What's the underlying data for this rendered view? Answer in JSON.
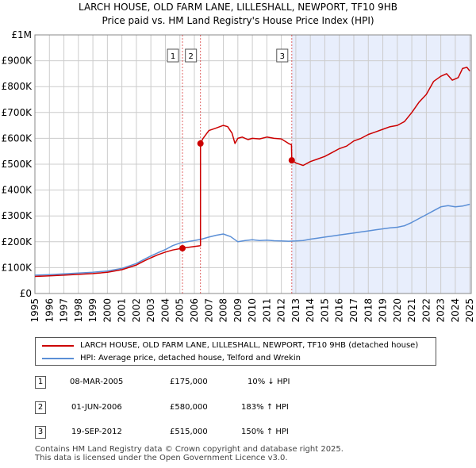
{
  "colors": {
    "property": "#cc0000",
    "hpi": "#5b8fd6",
    "shade": "#e8eefc",
    "grid": "#cccccc",
    "marker_line": "#cc0000"
  },
  "chart_data": {
    "type": "line",
    "title": "LARCH HOUSE, OLD FARM LANE, LILLESHALL, NEWPORT, TF10 9HB",
    "subtitle": "Price paid vs. HM Land Registry's House Price Index (HPI)",
    "xlim": [
      1995,
      2025.1
    ],
    "ylim": [
      0,
      1000000
    ],
    "y_ticks": [
      0,
      100000,
      200000,
      300000,
      400000,
      500000,
      600000,
      700000,
      800000,
      900000,
      1000000
    ],
    "y_tick_labels": [
      "£0",
      "£100K",
      "£200K",
      "£300K",
      "£400K",
      "£500K",
      "£600K",
      "£700K",
      "£800K",
      "£900K",
      "£1M"
    ],
    "x_ticks": [
      1995,
      1996,
      1997,
      1998,
      1999,
      2000,
      2001,
      2002,
      2003,
      2004,
      2005,
      2006,
      2007,
      2008,
      2009,
      2010,
      2011,
      2012,
      2013,
      2014,
      2015,
      2016,
      2017,
      2018,
      2019,
      2020,
      2021,
      2022,
      2023,
      2024,
      2025
    ],
    "x_tick_labels": [
      "1995",
      "1996",
      "1997",
      "1998",
      "1999",
      "2000",
      "2001",
      "2002",
      "2003",
      "2004",
      "2005",
      "2006",
      "2007",
      "2008",
      "2009",
      "2010",
      "2011",
      "2012",
      "2013",
      "2014",
      "2015",
      "2016",
      "2017",
      "2018",
      "2019",
      "2020",
      "2021",
      "2022",
      "2023",
      "2024",
      "2025"
    ],
    "grid": true,
    "shaded_from": 2012.72,
    "series": [
      {
        "name": "LARCH HOUSE, OLD FARM LANE, LILLESHALL, NEWPORT, TF10 9HB (detached house)",
        "x": [
          1995.0,
          1996.0,
          1997.0,
          1998.0,
          1999.0,
          2000.0,
          2001.0,
          2002.0,
          2002.5,
          2003.0,
          2003.5,
          2004.0,
          2004.5,
          2005.18,
          2005.5,
          2006.0,
          2006.42,
          2006.42,
          2006.6,
          2007.0,
          2007.5,
          2008.0,
          2008.3,
          2008.6,
          2008.8,
          2009.0,
          2009.3,
          2009.7,
          2010.0,
          2010.5,
          2011.0,
          2011.5,
          2012.0,
          2012.5,
          2012.7,
          2012.72,
          2013.0,
          2013.5,
          2014.0,
          2014.5,
          2015.0,
          2015.5,
          2016.0,
          2016.5,
          2017.0,
          2017.5,
          2018.0,
          2018.5,
          2019.0,
          2019.5,
          2020.0,
          2020.5,
          2021.0,
          2021.5,
          2022.0,
          2022.5,
          2023.0,
          2023.4,
          2023.8,
          2024.2,
          2024.5,
          2024.8,
          2025.0
        ],
        "values": [
          66000,
          68000,
          71000,
          74000,
          77000,
          82000,
          92000,
          110000,
          125000,
          138000,
          150000,
          160000,
          168000,
          175000,
          178000,
          182000,
          185000,
          580000,
          600000,
          630000,
          640000,
          650000,
          645000,
          620000,
          580000,
          600000,
          605000,
          595000,
          600000,
          598000,
          605000,
          600000,
          598000,
          580000,
          575000,
          515000,
          505000,
          495000,
          510000,
          520000,
          530000,
          545000,
          560000,
          570000,
          590000,
          600000,
          615000,
          625000,
          635000,
          645000,
          650000,
          665000,
          700000,
          740000,
          770000,
          820000,
          840000,
          850000,
          825000,
          835000,
          870000,
          875000,
          860000
        ]
      },
      {
        "name": "HPI: Average price, detached house, Telford and Wrekin",
        "x": [
          1995.0,
          1996.0,
          1997.0,
          1998.0,
          1999.0,
          2000.0,
          2001.0,
          2002.0,
          2002.5,
          2003.0,
          2003.5,
          2004.0,
          2004.5,
          2005.0,
          2005.5,
          2006.0,
          2006.5,
          2007.0,
          2007.5,
          2008.0,
          2008.5,
          2009.0,
          2009.5,
          2010.0,
          2010.5,
          2011.0,
          2011.5,
          2012.0,
          2012.5,
          2013.0,
          2013.5,
          2014.0,
          2014.5,
          2015.0,
          2015.5,
          2016.0,
          2016.5,
          2017.0,
          2017.5,
          2018.0,
          2018.5,
          2019.0,
          2019.5,
          2020.0,
          2020.5,
          2021.0,
          2021.5,
          2022.0,
          2022.5,
          2023.0,
          2023.5,
          2024.0,
          2024.5,
          2025.0
        ],
        "values": [
          71000,
          73000,
          76000,
          79000,
          82000,
          87000,
          97000,
          116000,
          131000,
          145000,
          158000,
          170000,
          185000,
          195000,
          200000,
          205000,
          210000,
          218000,
          225000,
          230000,
          220000,
          200000,
          205000,
          208000,
          205000,
          206000,
          204000,
          203000,
          202000,
          203000,
          205000,
          210000,
          214000,
          218000,
          222000,
          226000,
          230000,
          234000,
          238000,
          242000,
          246000,
          250000,
          254000,
          256000,
          262000,
          275000,
          290000,
          305000,
          320000,
          335000,
          340000,
          335000,
          338000,
          345000
        ]
      }
    ],
    "sales": [
      {
        "label": "1",
        "x": 2005.18,
        "value": 175000,
        "date": "08-MAR-2005",
        "price": "£175,000",
        "delta": "10% ↓ HPI"
      },
      {
        "label": "2",
        "x": 2006.42,
        "value": 580000,
        "date": "01-JUN-2006",
        "price": "£580,000",
        "delta": "183% ↑ HPI"
      },
      {
        "label": "3",
        "x": 2012.72,
        "value": 515000,
        "date": "19-SEP-2012",
        "price": "£515,000",
        "delta": "150% ↑ HPI"
      }
    ]
  },
  "legend": {
    "property_label": "LARCH HOUSE, OLD FARM LANE, LILLESHALL, NEWPORT, TF10 9HB (detached house)",
    "hpi_label": "HPI: Average price, detached house, Telford and Wrekin"
  },
  "footer": {
    "line1": "Contains HM Land Registry data © Crown copyright and database right 2025.",
    "line2": "This data is licensed under the Open Government Licence v3.0."
  }
}
